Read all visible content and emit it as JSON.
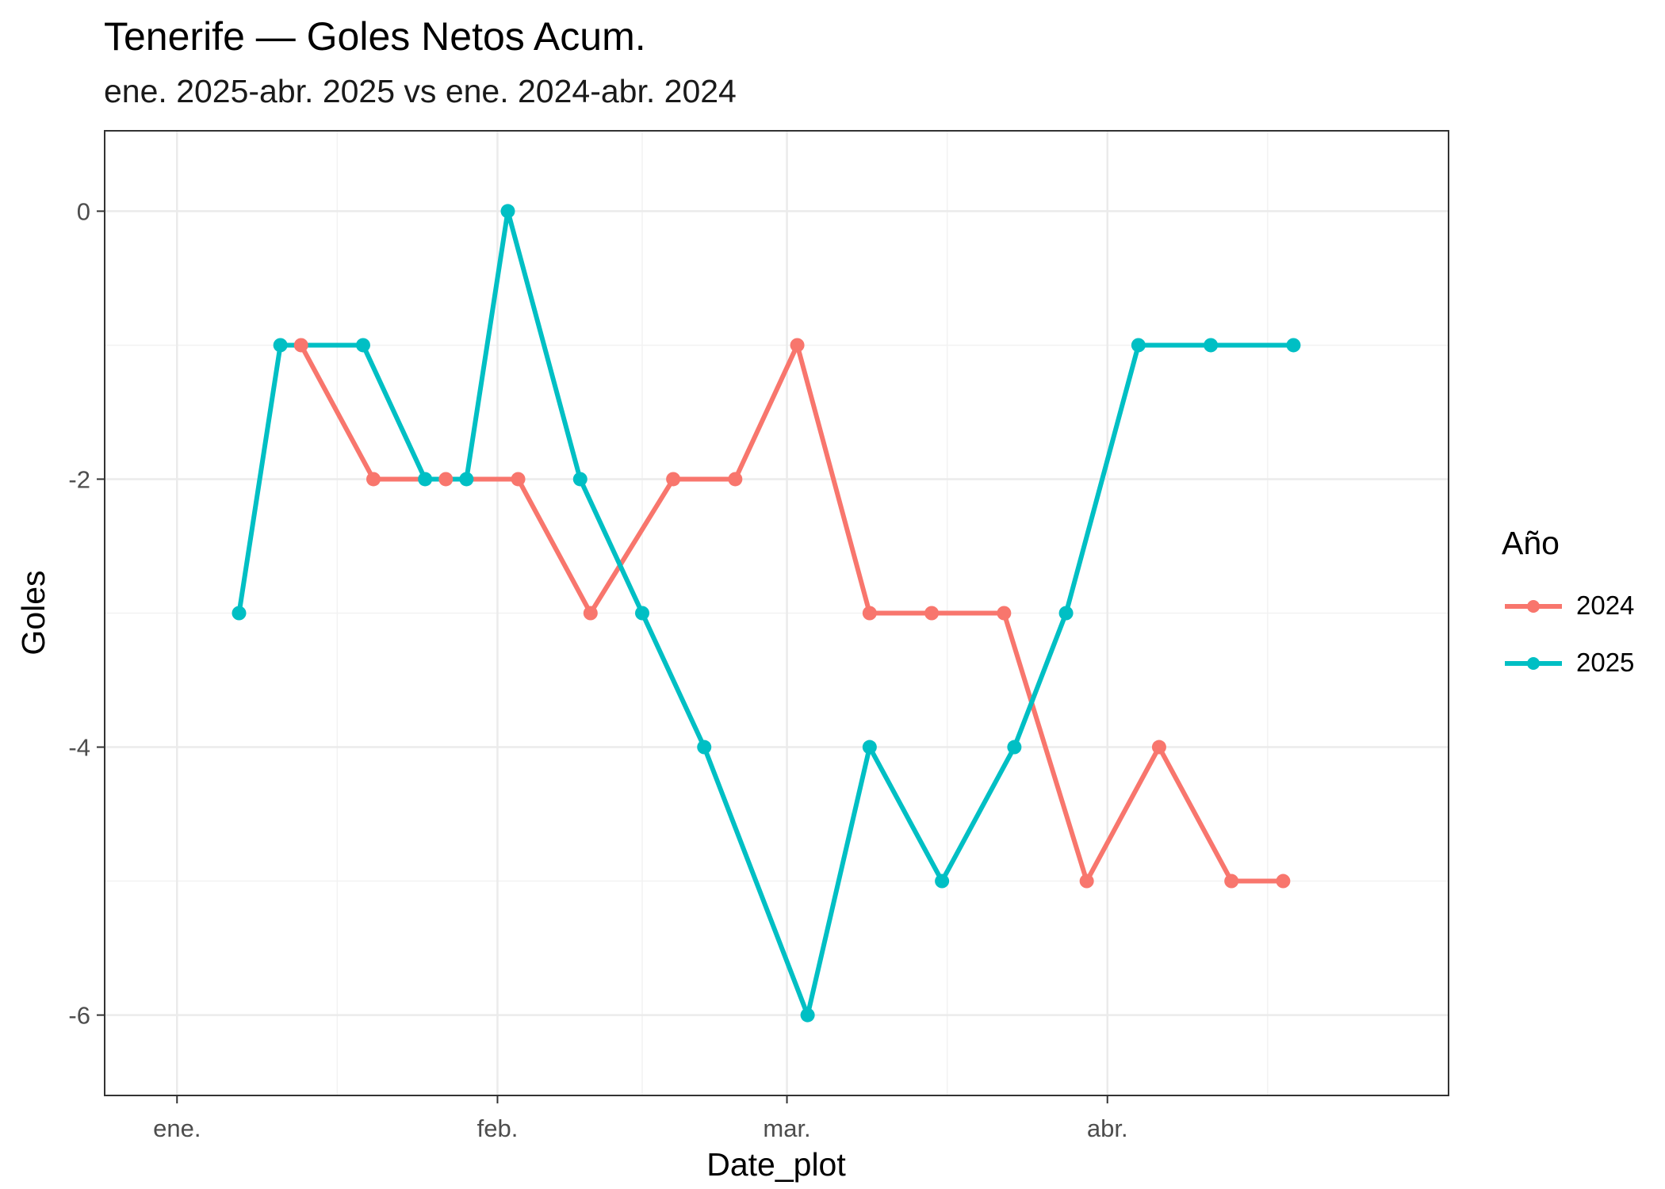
{
  "chart_data": {
    "type": "line",
    "title": "Tenerife — Goles Netos Acum.",
    "subtitle": "ene. 2025-abr. 2025 vs ene. 2024-abr. 2024",
    "xlabel": "Date_plot",
    "ylabel": "Goles",
    "x_ticks": [
      "ene.",
      "feb.",
      "mar.",
      "abr."
    ],
    "x_range": [
      "2024-12-25",
      "2025-05-04"
    ],
    "y_ticks": [
      0,
      -2,
      -4,
      -6
    ],
    "ylim": [
      -6.6,
      0.6
    ],
    "grid": true,
    "legend": {
      "title": "Año",
      "position": "right"
    },
    "series": [
      {
        "name": "2024",
        "color": "#F8766D",
        "points": [
          {
            "date": "2025-01-13",
            "y": -1
          },
          {
            "date": "2025-01-20",
            "y": -2
          },
          {
            "date": "2025-01-27",
            "y": -2
          },
          {
            "date": "2025-02-03",
            "y": -2
          },
          {
            "date": "2025-02-10",
            "y": -3
          },
          {
            "date": "2025-02-18",
            "y": -2
          },
          {
            "date": "2025-02-24",
            "y": -2
          },
          {
            "date": "2025-03-02",
            "y": -1
          },
          {
            "date": "2025-03-09",
            "y": -3
          },
          {
            "date": "2025-03-15",
            "y": -3
          },
          {
            "date": "2025-03-22",
            "y": -3
          },
          {
            "date": "2025-03-30",
            "y": -5
          },
          {
            "date": "2025-04-06",
            "y": -4
          },
          {
            "date": "2025-04-13",
            "y": -5
          },
          {
            "date": "2025-04-18",
            "y": -5
          }
        ]
      },
      {
        "name": "2025",
        "color": "#00BFC4",
        "points": [
          {
            "date": "2025-01-07",
            "y": -3
          },
          {
            "date": "2025-01-11",
            "y": -1
          },
          {
            "date": "2025-01-19",
            "y": -1
          },
          {
            "date": "2025-01-25",
            "y": -2
          },
          {
            "date": "2025-01-29",
            "y": -2
          },
          {
            "date": "2025-02-02",
            "y": 0
          },
          {
            "date": "2025-02-09",
            "y": -2
          },
          {
            "date": "2025-02-15",
            "y": -3
          },
          {
            "date": "2025-02-21",
            "y": -4
          },
          {
            "date": "2025-03-03",
            "y": -6
          },
          {
            "date": "2025-03-09",
            "y": -4
          },
          {
            "date": "2025-03-16",
            "y": -5
          },
          {
            "date": "2025-03-23",
            "y": -4
          },
          {
            "date": "2025-03-28",
            "y": -3
          },
          {
            "date": "2025-04-04",
            "y": -1
          },
          {
            "date": "2025-04-11",
            "y": -1
          },
          {
            "date": "2025-04-19",
            "y": -1
          }
        ]
      }
    ]
  }
}
